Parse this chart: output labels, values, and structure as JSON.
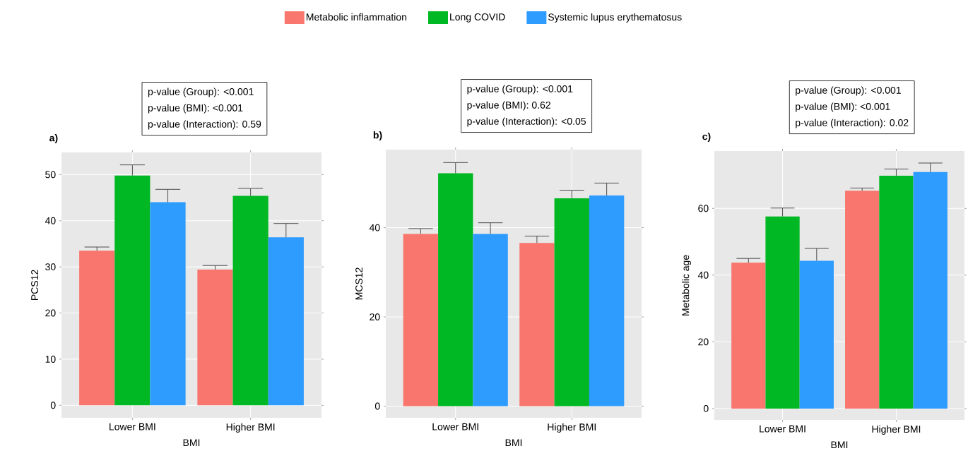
{
  "chart_data": [
    {
      "type": "bar",
      "title": "a)",
      "xlabel": "BMI",
      "ylabel": "PCS12",
      "categories": [
        "Lower BMI",
        "Higher BMI"
      ],
      "series": [
        {
          "name": "Metabolic inflammation",
          "color": "#f8766d",
          "values": [
            33.5,
            29.4
          ],
          "errors": [
            0.8,
            0.9
          ]
        },
        {
          "name": "Long COVID",
          "color": "#00b823",
          "values": [
            49.8,
            45.4
          ],
          "errors": [
            2.3,
            1.6
          ]
        },
        {
          "name": "Systemic lupus erythematosus",
          "color": "#2e9bff",
          "values": [
            44.0,
            36.4
          ],
          "errors": [
            2.8,
            3.0
          ]
        }
      ],
      "ylim": [
        -2.7,
        54.8
      ],
      "yticks": [
        0,
        10,
        20,
        30,
        40,
        50
      ],
      "grid": true,
      "legend": "top",
      "annotations": [
        "p-value (Group): <0.001",
        "p-value (BMI): <0.001",
        "p-value (Interaction): 0.59"
      ]
    },
    {
      "type": "bar",
      "title": "b)",
      "xlabel": "BMI",
      "ylabel": "MCS12",
      "categories": [
        "Lower BMI",
        "Higher BMI"
      ],
      "series": [
        {
          "color": "#f8766d",
          "values": [
            38.6,
            36.6
          ],
          "errors": [
            1.2,
            1.5
          ]
        },
        {
          "color": "#00b823",
          "values": [
            52.2,
            46.6
          ],
          "errors": [
            2.4,
            1.8
          ]
        },
        {
          "color": "#2e9bff",
          "values": [
            38.6,
            47.2
          ],
          "errors": [
            2.5,
            2.8
          ]
        }
      ],
      "ylim": [
        -2.6,
        57.5
      ],
      "yticks": [
        0,
        20,
        40
      ],
      "grid": true,
      "annotations": [
        "p-value (Group): <0.001",
        "p-value (BMI): 0.62",
        "p-value (Interaction): <0.05"
      ]
    },
    {
      "type": "bar",
      "title": "c)",
      "xlabel": "BMI",
      "ylabel": "Metabolic age",
      "categories": [
        "Lower BMI",
        "Higher BMI"
      ],
      "series": [
        {
          "color": "#f8766d",
          "values": [
            43.7,
            65.3
          ],
          "errors": [
            1.3,
            0.8
          ]
        },
        {
          "color": "#00b823",
          "values": [
            57.6,
            69.8
          ],
          "errors": [
            2.5,
            2.0
          ]
        },
        {
          "color": "#2e9bff",
          "values": [
            44.3,
            70.9
          ],
          "errors": [
            3.7,
            2.7
          ]
        }
      ],
      "ylim": [
        -3.4,
        77.2
      ],
      "yticks": [
        0,
        20,
        40,
        60
      ],
      "grid": true,
      "annotations": [
        "p-value (Group): <0.001",
        "p-value (BMI): <0.001",
        "p-value (Interaction): 0.02"
      ]
    }
  ]
}
